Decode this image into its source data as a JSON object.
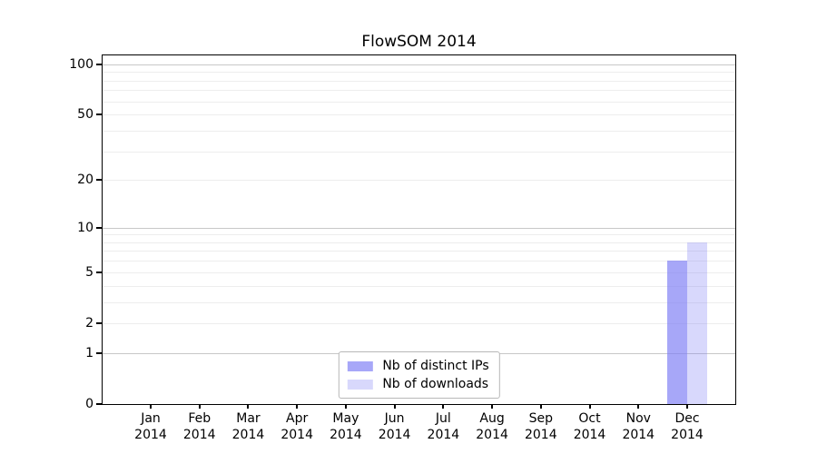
{
  "chart_data": {
    "type": "bar",
    "title": "FlowSOM 2014",
    "scale": "log1p",
    "ylim": [
      0,
      113
    ],
    "yticks": [
      0,
      1,
      2,
      5,
      10,
      20,
      50,
      100
    ],
    "grid_major_values": [
      1,
      10,
      100
    ],
    "grid_minor_values": [
      2,
      3,
      4,
      5,
      6,
      7,
      8,
      9,
      20,
      30,
      40,
      50,
      60,
      70,
      80,
      90
    ],
    "grid_major_color": "#c8c8c8",
    "grid_minor_color": "#ededed",
    "categories": [
      "Jan",
      "Feb",
      "Mar",
      "Apr",
      "May",
      "Jun",
      "Jul",
      "Aug",
      "Sep",
      "Oct",
      "Nov",
      "Dec"
    ],
    "x_year": "2014",
    "series": [
      {
        "name": "Nb of distinct IPs",
        "color": "rgba(125,125,244,0.68)",
        "values": [
          0,
          0,
          0,
          0,
          0,
          0,
          0,
          0,
          0,
          0,
          0,
          6
        ]
      },
      {
        "name": "Nb of downloads",
        "color": "rgba(125,125,244,0.30)",
        "values": [
          0,
          0,
          0,
          0,
          0,
          0,
          0,
          0,
          0,
          0,
          0,
          8
        ]
      }
    ],
    "legend_position": "lower center",
    "grid": "on"
  }
}
